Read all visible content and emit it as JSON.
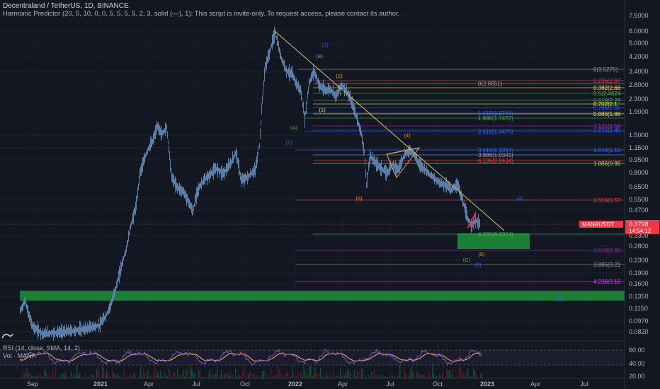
{
  "header": {
    "symbol_line": "Decentraland / TetherUS, 1D, BINANCE",
    "indicator_line": "Harmonic Predictor (20, 5, 10, 0, 0, 5, 5, 5, 5, 2, 3, solid (—), 1): This script is invite-only. To request access, please contact its author."
  },
  "price_axis": {
    "ticks": [
      "7.5000",
      "6.0000",
      "5.0000",
      "4.2000",
      "3.4000",
      "2.8000",
      "2.3000",
      "1.9000",
      "1.5000",
      "1.1500",
      "0.9500",
      "0.8000",
      "0.6500",
      "0.5500",
      "0.4700",
      "0.3300",
      "0.2800",
      "0.2300",
      "0.1900",
      "0.1600",
      "0.1350",
      "0.1150",
      "0.0970",
      "0.0820"
    ],
    "current_price": "0.3798",
    "countdown": "14:54:12",
    "symbol_tag": "MANAUSDT"
  },
  "rsi_axis": {
    "ticks": [
      "60.00",
      "40.00",
      "20.00"
    ]
  },
  "time_axis": {
    "ticks": [
      "Sep",
      "2021",
      "Apr",
      "Jul",
      "Oct",
      "2022",
      "Apr",
      "Jul",
      "Oct",
      "2023",
      "Apr",
      "Jul"
    ]
  },
  "rsi_legend": {
    "title": "RSI (14, close, SMA, 14, 2)",
    "volume": "Vol · MANA"
  },
  "fib_labels": [
    {
      "text": "0(3.5275)",
      "color": "#9e9e9e"
    },
    {
      "text": "0(2.8651)",
      "color": "#9e9e9e"
    },
    {
      "text": "0.236(2.97",
      "color": "#f23645"
    },
    {
      "text": "0.382(2.68",
      "color": "#ffeb3b"
    },
    {
      "text": "0.5(2.4624",
      "color": "#4caf50"
    },
    {
      "text": "0.618(2.29",
      "color": "#4caf50"
    },
    {
      "text": "0.702(2.1",
      "color": "#ffeb3b"
    },
    {
      "text": "0.786(2.06",
      "color": "#2962ff"
    },
    {
      "text": "0.886(1.86",
      "color": "#ffeb3b"
    },
    {
      "text": "1.618(1.8744)",
      "color": "#2962ff"
    },
    {
      "text": "1.886(1.7472)",
      "color": "#4caf50"
    },
    {
      "text": "1.131(1.56",
      "color": "#9c27b0"
    },
    {
      "text": "1.272(1.45",
      "color": "#2962ff"
    },
    {
      "text": "2.618(1.4470)",
      "color": "#2962ff"
    },
    {
      "text": "1.618(1.10",
      "color": "#2962ff"
    },
    {
      "text": "3.618(1.1094)",
      "color": "#2962ff"
    },
    {
      "text": "3.886(1.0341)",
      "color": "#9e9e9e"
    },
    {
      "text": "4.236(0.9434)",
      "color": "#f23645"
    },
    {
      "text": "1.886(0.96",
      "color": "#cddc39"
    },
    {
      "text": "2.618(0.57",
      "color": "#f23645"
    },
    {
      "text": "4.236(0.3304)",
      "color": "#4caf50"
    },
    {
      "text": "3.618(0.26",
      "color": "#9c27b0"
    },
    {
      "text": "3.886(0.21",
      "color": "#9e9e9e"
    },
    {
      "text": "4.236(0.16",
      "color": "#e040fb"
    }
  ],
  "wave_labels": [
    {
      "text": "(2)",
      "color": "#2962ff"
    },
    {
      "text": "(B)",
      "color": "#4caf50"
    },
    {
      "text": "(2)",
      "color": "#ff9800"
    },
    {
      "text": "(1)",
      "color": "#ffeb3b"
    },
    {
      "text": "(A)",
      "color": "#4caf50"
    },
    {
      "text": "(1)",
      "color": "#2962ff"
    },
    {
      "text": "(4)",
      "color": "#ff9800"
    },
    {
      "text": "(5)",
      "color": "#ff9800"
    },
    {
      "text": "(4)",
      "color": "#2962ff"
    },
    {
      "text": "(5)",
      "color": "#ff9800"
    },
    {
      "text": "(C)",
      "color": "#4caf50"
    },
    {
      "text": "(3)",
      "color": "#2962ff"
    },
    {
      "text": "(5)",
      "color": "#2962ff"
    }
  ],
  "colors": {
    "background": "#131722",
    "candle": "#5b7fa8",
    "zone": "#1f8b3a",
    "trendline": "#d6c26b",
    "price_tag": "#f23645",
    "rsi_line": "#7e57c2",
    "rsi_signal": "#ffb74d"
  }
}
